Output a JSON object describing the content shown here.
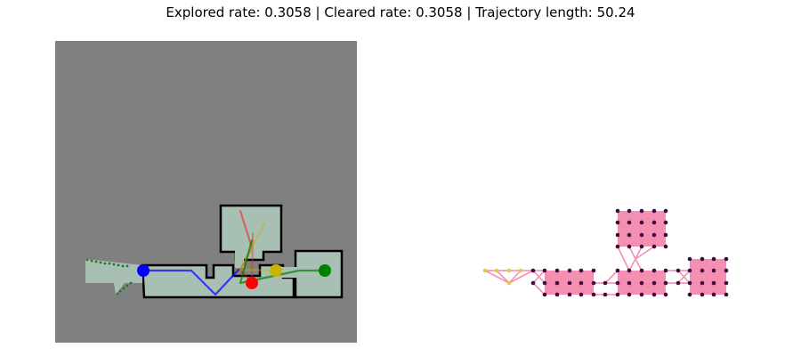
{
  "title": "Explored rate: 0.3058 | Cleared rate: 0.3058 | Trajectory length: 50.24",
  "colors": {
    "background": "#ffffff",
    "unexplored": "#808080",
    "explored_floor": "#a7c0b3",
    "wall": "#000000",
    "room_fill": "#f48fb1",
    "node": "#3d0b3f",
    "frontier_node": "#e6c84a",
    "agent_blue": "#0000ff",
    "agent_red": "#ff0000",
    "agent_yellow": "#c8b400",
    "agent_green": "#008000"
  },
  "agents": [
    {
      "id": "blue",
      "color": "#0000ff"
    },
    {
      "id": "red",
      "color": "#ff0000"
    },
    {
      "id": "yellow",
      "color": "#c8b400"
    },
    {
      "id": "green",
      "color": "#008000"
    }
  ]
}
